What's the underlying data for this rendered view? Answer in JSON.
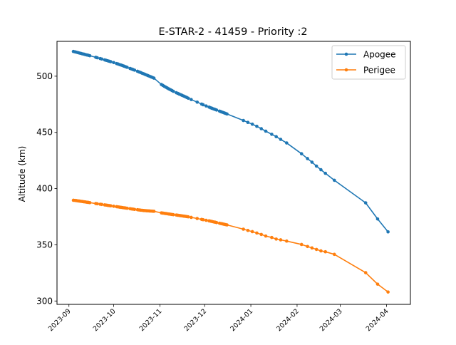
{
  "chart_data": {
    "type": "line",
    "title": "E-STAR-2 - 41459 - Priority :2",
    "xlabel": "",
    "ylabel": "Altitude (km)",
    "x_type": "date",
    "xlim": [
      "2023-08-24",
      "2024-04-17"
    ],
    "ylim": [
      297,
      531
    ],
    "yticks": [
      300,
      350,
      400,
      450,
      500
    ],
    "xticks": [
      "2023-09",
      "2023-10",
      "2023-11",
      "2023-12",
      "2024-01",
      "2024-02",
      "2024-03",
      "2024-04"
    ],
    "grid": false,
    "legend": {
      "position": "top-right"
    },
    "series": [
      {
        "name": "Apogee",
        "color": "#1f77b4",
        "points": [
          [
            "2023-09-04",
            522
          ],
          [
            "2023-09-05",
            521.7
          ],
          [
            "2023-09-06",
            521.3
          ],
          [
            "2023-09-07",
            521
          ],
          [
            "2023-09-08",
            520.6
          ],
          [
            "2023-09-09",
            520.3
          ],
          [
            "2023-09-10",
            519.9
          ],
          [
            "2023-09-11",
            519.6
          ],
          [
            "2023-09-12",
            519.2
          ],
          [
            "2023-09-13",
            518.9
          ],
          [
            "2023-09-14",
            518.6
          ],
          [
            "2023-09-15",
            518.2
          ],
          [
            "2023-09-19",
            516.8
          ],
          [
            "2023-09-20",
            516.4
          ],
          [
            "2023-09-22",
            515.7
          ],
          [
            "2023-09-23",
            515.3
          ],
          [
            "2023-09-25",
            514.5
          ],
          [
            "2023-09-26",
            514.1
          ],
          [
            "2023-09-27",
            513.7
          ],
          [
            "2023-09-28",
            513.3
          ],
          [
            "2023-09-29",
            512.9
          ],
          [
            "2023-10-01",
            512.1
          ],
          [
            "2023-10-03",
            511.2
          ],
          [
            "2023-10-04",
            510.8
          ],
          [
            "2023-10-05",
            510.3
          ],
          [
            "2023-10-06",
            509.9
          ],
          [
            "2023-10-07",
            509.4
          ],
          [
            "2023-10-08",
            508.9
          ],
          [
            "2023-10-09",
            508.4
          ],
          [
            "2023-10-10",
            507.9
          ],
          [
            "2023-10-12",
            506.9
          ],
          [
            "2023-10-13",
            506.4
          ],
          [
            "2023-10-14",
            505.9
          ],
          [
            "2023-10-15",
            505.4
          ],
          [
            "2023-10-17",
            504.4
          ],
          [
            "2023-10-18",
            503.8
          ],
          [
            "2023-10-19",
            503.3
          ],
          [
            "2023-10-20",
            502.7
          ],
          [
            "2023-10-21",
            502.2
          ],
          [
            "2023-10-22",
            501.6
          ],
          [
            "2023-10-23",
            501.1
          ],
          [
            "2023-10-24",
            500.5
          ],
          [
            "2023-10-25",
            500
          ],
          [
            "2023-10-26",
            499.4
          ],
          [
            "2023-10-27",
            498.9
          ],
          [
            "2023-10-28",
            498.3
          ],
          [
            "2023-11-02",
            492.6
          ],
          [
            "2023-11-03",
            491.8
          ],
          [
            "2023-11-04",
            491
          ],
          [
            "2023-11-05",
            490.2
          ],
          [
            "2023-11-06",
            489.5
          ],
          [
            "2023-11-07",
            488.7
          ],
          [
            "2023-11-08",
            488
          ],
          [
            "2023-11-09",
            487.3
          ],
          [
            "2023-11-10",
            486.6
          ],
          [
            "2023-11-12",
            485.3
          ],
          [
            "2023-11-13",
            484.7
          ],
          [
            "2023-11-14",
            484.1
          ],
          [
            "2023-11-15",
            483.5
          ],
          [
            "2023-11-16",
            482.9
          ],
          [
            "2023-11-17",
            482.3
          ],
          [
            "2023-11-18",
            481.7
          ],
          [
            "2023-11-19",
            481.1
          ],
          [
            "2023-11-20",
            480.4
          ],
          [
            "2023-11-22",
            479.2
          ],
          [
            "2023-11-26",
            476.9
          ],
          [
            "2023-11-29",
            475.2
          ],
          [
            "2023-11-30",
            474.6
          ],
          [
            "2023-12-02",
            473.5
          ],
          [
            "2023-12-04",
            472.5
          ],
          [
            "2023-12-05",
            471.9
          ],
          [
            "2023-12-06",
            471.4
          ],
          [
            "2023-12-07",
            470.9
          ],
          [
            "2023-12-08",
            470.4
          ],
          [
            "2023-12-09",
            469.9
          ],
          [
            "2023-12-11",
            468.9
          ],
          [
            "2023-12-12",
            468.4
          ],
          [
            "2023-12-13",
            467.9
          ],
          [
            "2023-12-14",
            467.4
          ],
          [
            "2023-12-15",
            466.9
          ],
          [
            "2023-12-16",
            466.4
          ],
          [
            "2023-12-27",
            460.6
          ],
          [
            "2023-12-30",
            458.9
          ],
          [
            "2024-01-02",
            457.3
          ],
          [
            "2024-01-05",
            455.4
          ],
          [
            "2024-01-08",
            453.3
          ],
          [
            "2024-01-11",
            451.1
          ],
          [
            "2024-01-15",
            448.3
          ],
          [
            "2024-01-18",
            446.2
          ],
          [
            "2024-01-21",
            443.8
          ],
          [
            "2024-01-25",
            440.6
          ],
          [
            "2024-02-04",
            431
          ],
          [
            "2024-02-08",
            426.7
          ],
          [
            "2024-02-11",
            423.5
          ],
          [
            "2024-02-14",
            420
          ],
          [
            "2024-02-17",
            416.8
          ],
          [
            "2024-02-20",
            413.6
          ],
          [
            "2024-02-26",
            407.4
          ],
          [
            "2024-03-18",
            387.3
          ],
          [
            "2024-03-26",
            373
          ],
          [
            "2024-04-02",
            361.5
          ]
        ]
      },
      {
        "name": "Perigee",
        "color": "#ff7f0e",
        "points": [
          [
            "2023-09-04",
            389.6
          ],
          [
            "2023-09-05",
            389.5
          ],
          [
            "2023-09-06",
            389.3
          ],
          [
            "2023-09-07",
            389.1
          ],
          [
            "2023-09-08",
            388.9
          ],
          [
            "2023-09-09",
            388.7
          ],
          [
            "2023-09-10",
            388.5
          ],
          [
            "2023-09-11",
            388.3
          ],
          [
            "2023-09-12",
            388.1
          ],
          [
            "2023-09-13",
            387.9
          ],
          [
            "2023-09-14",
            387.7
          ],
          [
            "2023-09-15",
            387.5
          ],
          [
            "2023-09-19",
            386.7
          ],
          [
            "2023-09-20",
            386.5
          ],
          [
            "2023-09-22",
            386.1
          ],
          [
            "2023-09-23",
            385.9
          ],
          [
            "2023-09-25",
            385.5
          ],
          [
            "2023-09-26",
            385.3
          ],
          [
            "2023-09-27",
            385.1
          ],
          [
            "2023-09-28",
            384.9
          ],
          [
            "2023-09-29",
            384.7
          ],
          [
            "2023-10-01",
            384.3
          ],
          [
            "2023-10-03",
            383.9
          ],
          [
            "2023-10-04",
            383.7
          ],
          [
            "2023-10-05",
            383.5
          ],
          [
            "2023-10-06",
            383.3
          ],
          [
            "2023-10-07",
            383.1
          ],
          [
            "2023-10-08",
            382.9
          ],
          [
            "2023-10-09",
            382.7
          ],
          [
            "2023-10-10",
            382.5
          ],
          [
            "2023-10-12",
            382.1
          ],
          [
            "2023-10-13",
            381.9
          ],
          [
            "2023-10-14",
            381.7
          ],
          [
            "2023-10-15",
            381.5
          ],
          [
            "2023-10-17",
            381.2
          ],
          [
            "2023-10-18",
            381
          ],
          [
            "2023-10-19",
            380.8
          ],
          [
            "2023-10-20",
            380.7
          ],
          [
            "2023-10-21",
            380.5
          ],
          [
            "2023-10-22",
            380.4
          ],
          [
            "2023-10-23",
            380.3
          ],
          [
            "2023-10-24",
            380.2
          ],
          [
            "2023-10-25",
            380.1
          ],
          [
            "2023-10-26",
            380
          ],
          [
            "2023-10-27",
            379.9
          ],
          [
            "2023-10-28",
            379.8
          ],
          [
            "2023-11-02",
            378.4
          ],
          [
            "2023-11-03",
            378.2
          ],
          [
            "2023-11-04",
            378
          ],
          [
            "2023-11-05",
            377.8
          ],
          [
            "2023-11-06",
            377.6
          ],
          [
            "2023-11-07",
            377.4
          ],
          [
            "2023-11-08",
            377.2
          ],
          [
            "2023-11-09",
            377
          ],
          [
            "2023-11-10",
            376.8
          ],
          [
            "2023-11-12",
            376.5
          ],
          [
            "2023-11-13",
            376.3
          ],
          [
            "2023-11-14",
            376.1
          ],
          [
            "2023-11-15",
            375.9
          ],
          [
            "2023-11-16",
            375.7
          ],
          [
            "2023-11-17",
            375.5
          ],
          [
            "2023-11-18",
            375.3
          ],
          [
            "2023-11-19",
            375.1
          ],
          [
            "2023-11-20",
            374.9
          ],
          [
            "2023-11-22",
            374.4
          ],
          [
            "2023-11-26",
            373.4
          ],
          [
            "2023-11-29",
            372.6
          ],
          [
            "2023-11-30",
            372.3
          ],
          [
            "2023-12-02",
            371.8
          ],
          [
            "2023-12-04",
            371.3
          ],
          [
            "2023-12-05",
            371
          ],
          [
            "2023-12-06",
            370.7
          ],
          [
            "2023-12-07",
            370.4
          ],
          [
            "2023-12-08",
            370.1
          ],
          [
            "2023-12-09",
            369.8
          ],
          [
            "2023-12-11",
            369.2
          ],
          [
            "2023-12-12",
            368.9
          ],
          [
            "2023-12-13",
            368.6
          ],
          [
            "2023-12-14",
            368.3
          ],
          [
            "2023-12-15",
            368
          ],
          [
            "2023-12-16",
            367.7
          ],
          [
            "2023-12-27",
            363.9
          ],
          [
            "2023-12-30",
            362.8
          ],
          [
            "2024-01-02",
            361.7
          ],
          [
            "2024-01-05",
            360.5
          ],
          [
            "2024-01-08",
            359.2
          ],
          [
            "2024-01-11",
            357.8
          ],
          [
            "2024-01-15",
            356.5
          ],
          [
            "2024-01-18",
            355.1
          ],
          [
            "2024-01-21",
            354.4
          ],
          [
            "2024-01-25",
            353.3
          ],
          [
            "2024-02-04",
            350.3
          ],
          [
            "2024-02-08",
            348.5
          ],
          [
            "2024-02-11",
            347.2
          ],
          [
            "2024-02-14",
            345.9
          ],
          [
            "2024-02-17",
            344.6
          ],
          [
            "2024-02-20",
            343.8
          ],
          [
            "2024-02-26",
            341.5
          ],
          [
            "2024-03-18",
            325.2
          ],
          [
            "2024-03-26",
            315
          ],
          [
            "2024-04-02",
            308
          ]
        ]
      }
    ]
  }
}
